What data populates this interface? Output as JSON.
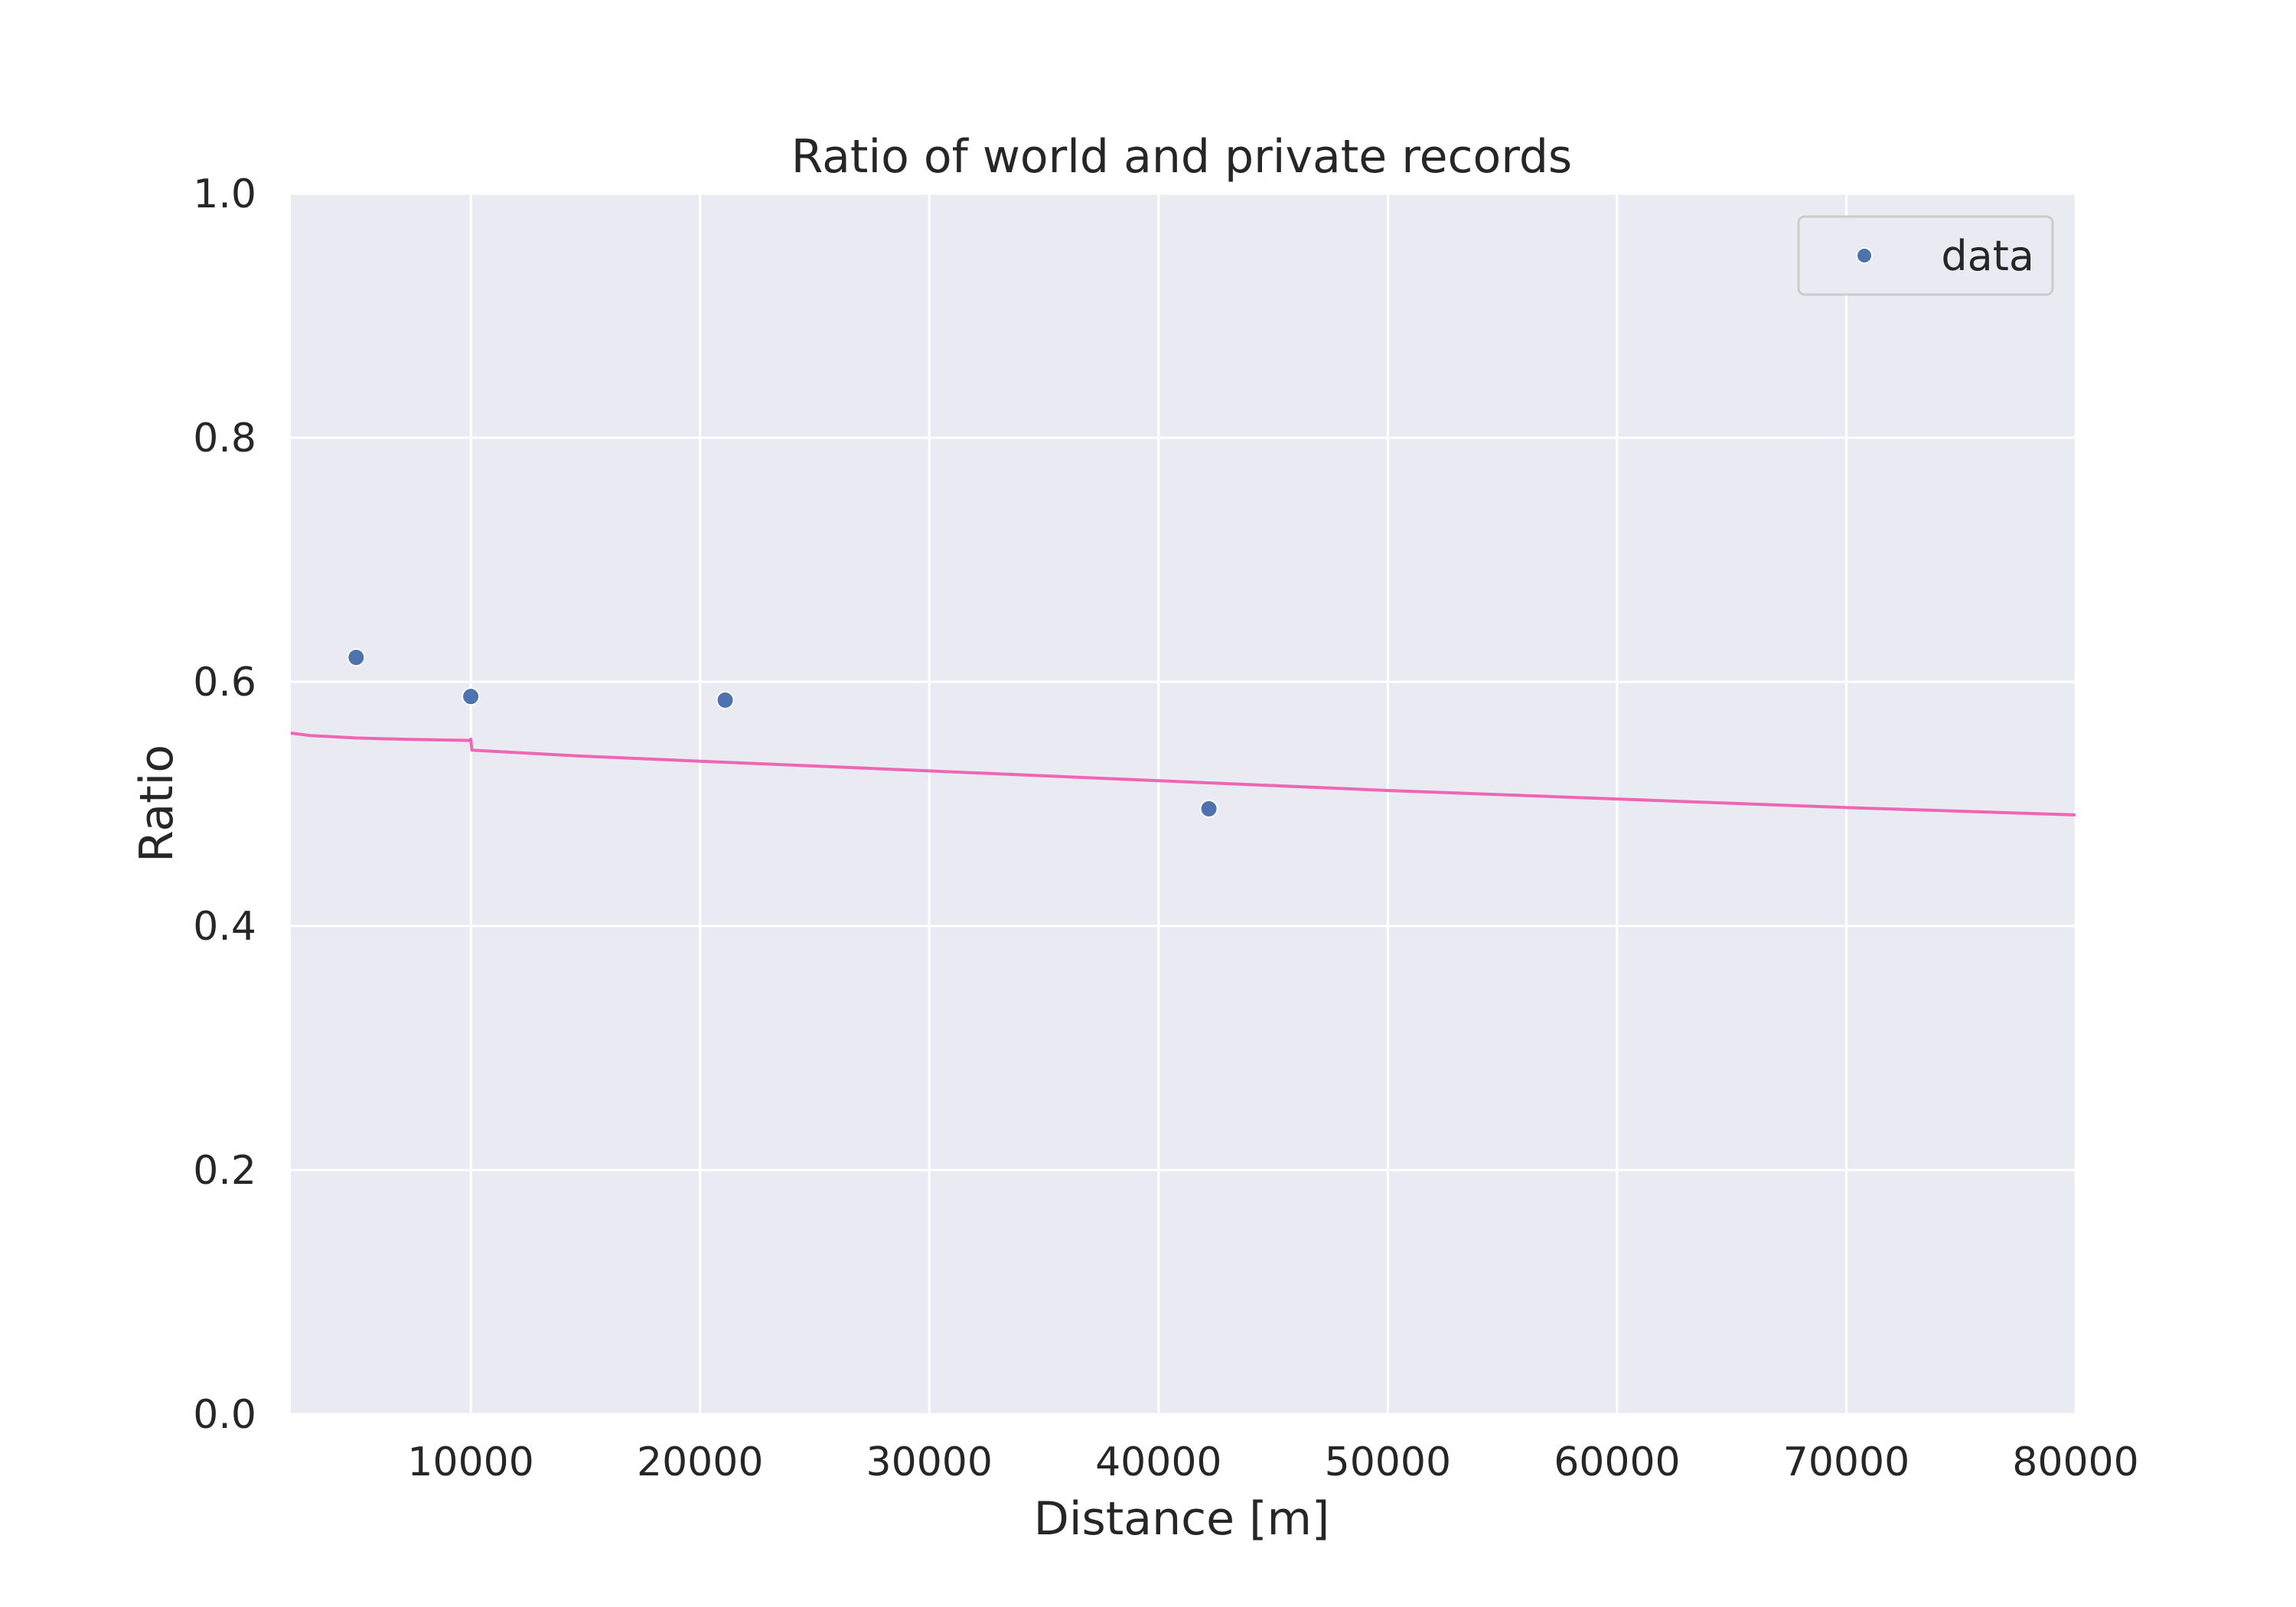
{
  "chart_data": {
    "type": "scatter",
    "title": "Ratio of world and private records",
    "xlabel": "Distance [m]",
    "ylabel": "Ratio",
    "xlim": [
      2150,
      80000
    ],
    "ylim": [
      0,
      1
    ],
    "xticks": [
      10000,
      20000,
      30000,
      40000,
      50000,
      60000,
      70000,
      80000
    ],
    "yticks": [
      0.0,
      0.2,
      0.4,
      0.6,
      0.8,
      1.0
    ],
    "yticks_labels": [
      "0.0",
      "0.2",
      "0.4",
      "0.6",
      "0.8",
      "1.0"
    ],
    "grid": true,
    "legend_position": "top-right",
    "series": [
      {
        "name": "data",
        "kind": "scatter",
        "color": "#4c72b0",
        "x": [
          5000,
          10000,
          21097,
          42195
        ],
        "y": [
          0.62,
          0.588,
          0.585,
          0.496
        ]
      },
      {
        "kind": "line",
        "color": "#ee66b4",
        "x": [
          2150,
          3000,
          4000,
          5000,
          7000,
          9990,
          10000,
          10050,
          15000,
          20000,
          30000,
          40000,
          50000,
          60000,
          70000,
          80000
        ],
        "y": [
          0.558,
          0.556,
          0.555,
          0.554,
          0.553,
          0.552,
          0.553,
          0.544,
          0.539,
          0.535,
          0.527,
          0.519,
          0.511,
          0.504,
          0.497,
          0.491
        ]
      }
    ],
    "colors": {
      "plot_background": "#eaeaf2",
      "grid": "#ffffff",
      "legend_border": "#cccccc"
    }
  }
}
